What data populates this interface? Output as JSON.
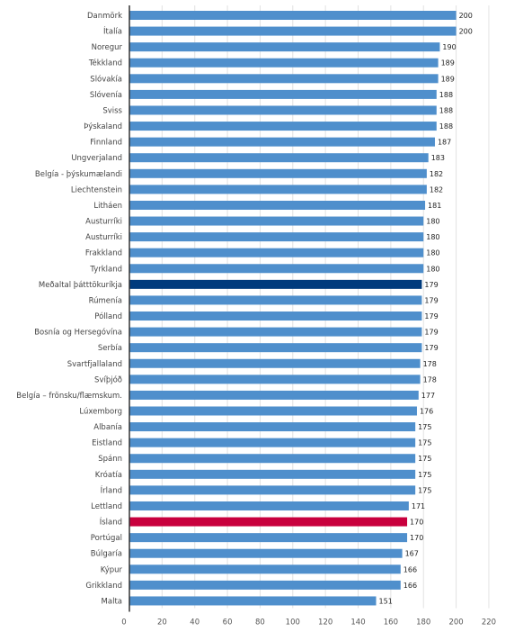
{
  "chart_data": {
    "type": "bar",
    "orientation": "horizontal",
    "title": "",
    "xlabel": "",
    "ylabel": "",
    "xlim": [
      0,
      220
    ],
    "x_ticks": [
      0,
      20,
      40,
      60,
      80,
      100,
      120,
      140,
      160,
      180,
      200,
      220
    ],
    "grid": "vertical",
    "legend": "none",
    "colors": {
      "default": "#4f8fcc",
      "average": "#003b7d",
      "highlight": "#c8003d"
    },
    "categories": [
      "Danmörk",
      "Ítalía",
      "Noregur",
      "Tékkland",
      "Slóvakía",
      "Slóvenía",
      "Sviss",
      "Þýskaland",
      "Finnland",
      "Ungverjaland",
      "Belgía - þýskumælandi",
      "Liechtenstein",
      "Litháen",
      "Austurríki",
      "Austurríki",
      "Frakkland",
      "Tyrkland",
      "Meðaltal þátttökuríkja",
      "Rúmenía",
      "Pólland",
      "Bosnía og Hersegóvína",
      "Serbía",
      "Svartfjallaland",
      "Svíþjóð",
      "Belgía – frönsku/flæmskum.",
      "Lúxemborg",
      "Albanía",
      "Eistland",
      "Spánn",
      "Króatía",
      "Írland",
      "Lettland",
      "Ísland",
      "Portúgal",
      "Búlgaría",
      "Kýpur",
      "Grikkland",
      "Malta"
    ],
    "values": [
      200,
      200,
      190,
      189,
      189,
      188,
      188,
      188,
      187,
      183,
      182,
      182,
      181,
      180,
      180,
      180,
      180,
      179,
      179,
      179,
      179,
      179,
      178,
      178,
      177,
      176,
      175,
      175,
      175,
      175,
      175,
      171,
      170,
      170,
      167,
      166,
      166,
      151
    ],
    "highlights": {
      "Meðaltal þátttökuríkja": "average",
      "Ísland": "highlight"
    }
  }
}
